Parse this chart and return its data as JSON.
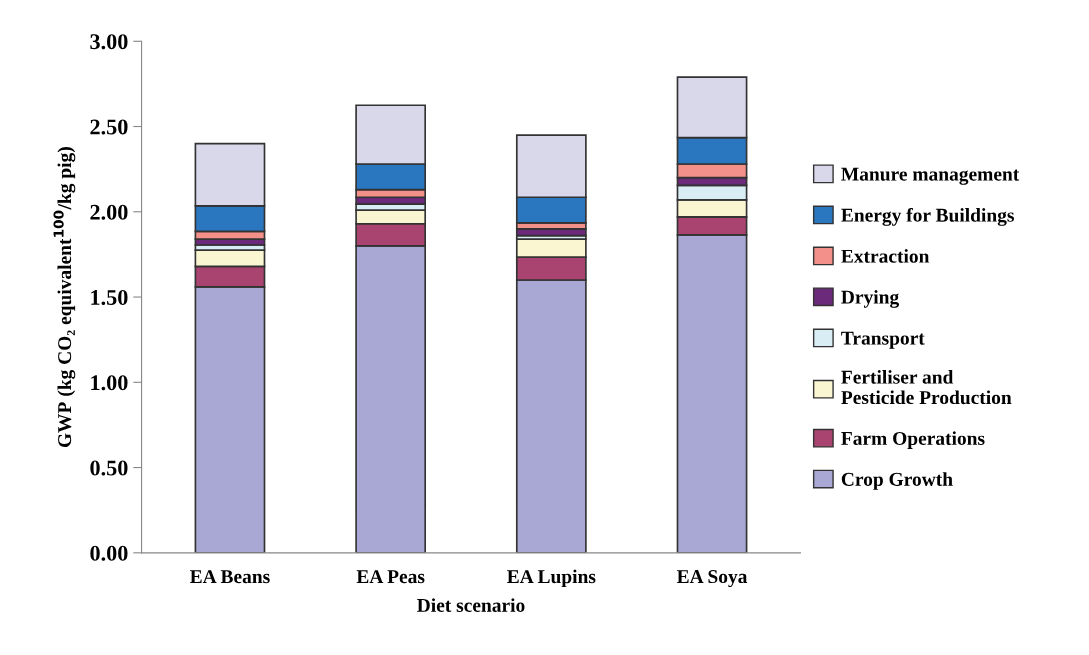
{
  "chart_data": {
    "type": "bar",
    "stacked": true,
    "xlabel": "Diet scenario",
    "ylabel": "GWP (kg CO₂ equivalent$^{100}$/kg pig)",
    "categories": [
      "EA Beans",
      "EA Peas",
      "EA Lupins",
      "EA Soya"
    ],
    "ylim": [
      0,
      3
    ],
    "yticks": [
      {
        "value": 0,
        "label": "0.00"
      },
      {
        "value": 0.5,
        "label": "0.50"
      },
      {
        "value": 1,
        "label": "1.00"
      },
      {
        "value": 1.5,
        "label": "1.50"
      },
      {
        "value": 2,
        "label": "2.00"
      },
      {
        "value": 2.5,
        "label": "2.50"
      },
      {
        "value": 3,
        "label": "3.00"
      }
    ],
    "grid": false,
    "legend": "right",
    "series": [
      {
        "name": "Crop Growth",
        "color": "#a9a8d4",
        "values": [
          1.56,
          1.8,
          1.6,
          1.865
        ]
      },
      {
        "name": "Farm Operations",
        "color": "#a8446f",
        "values": [
          0.12,
          0.13,
          0.135,
          0.105
        ]
      },
      {
        "name": "Fertiliser and\nPesticide Production",
        "color": "#fbf6d2",
        "values": [
          0.095,
          0.08,
          0.105,
          0.1
        ]
      },
      {
        "name": "Transport",
        "color": "#d8eef4",
        "values": [
          0.03,
          0.035,
          0.02,
          0.085
        ]
      },
      {
        "name": "Drying",
        "color": "#6b2a7a",
        "values": [
          0.035,
          0.04,
          0.04,
          0.045
        ]
      },
      {
        "name": "Extraction",
        "color": "#f4908a",
        "values": [
          0.045,
          0.045,
          0.035,
          0.08
        ]
      },
      {
        "name": "Energy for Buildings",
        "color": "#2a77c0",
        "values": [
          0.15,
          0.15,
          0.15,
          0.155
        ]
      },
      {
        "name": "Manure management",
        "color": "#d9d7ea",
        "values": [
          0.365,
          0.345,
          0.365,
          0.355
        ]
      }
    ]
  }
}
